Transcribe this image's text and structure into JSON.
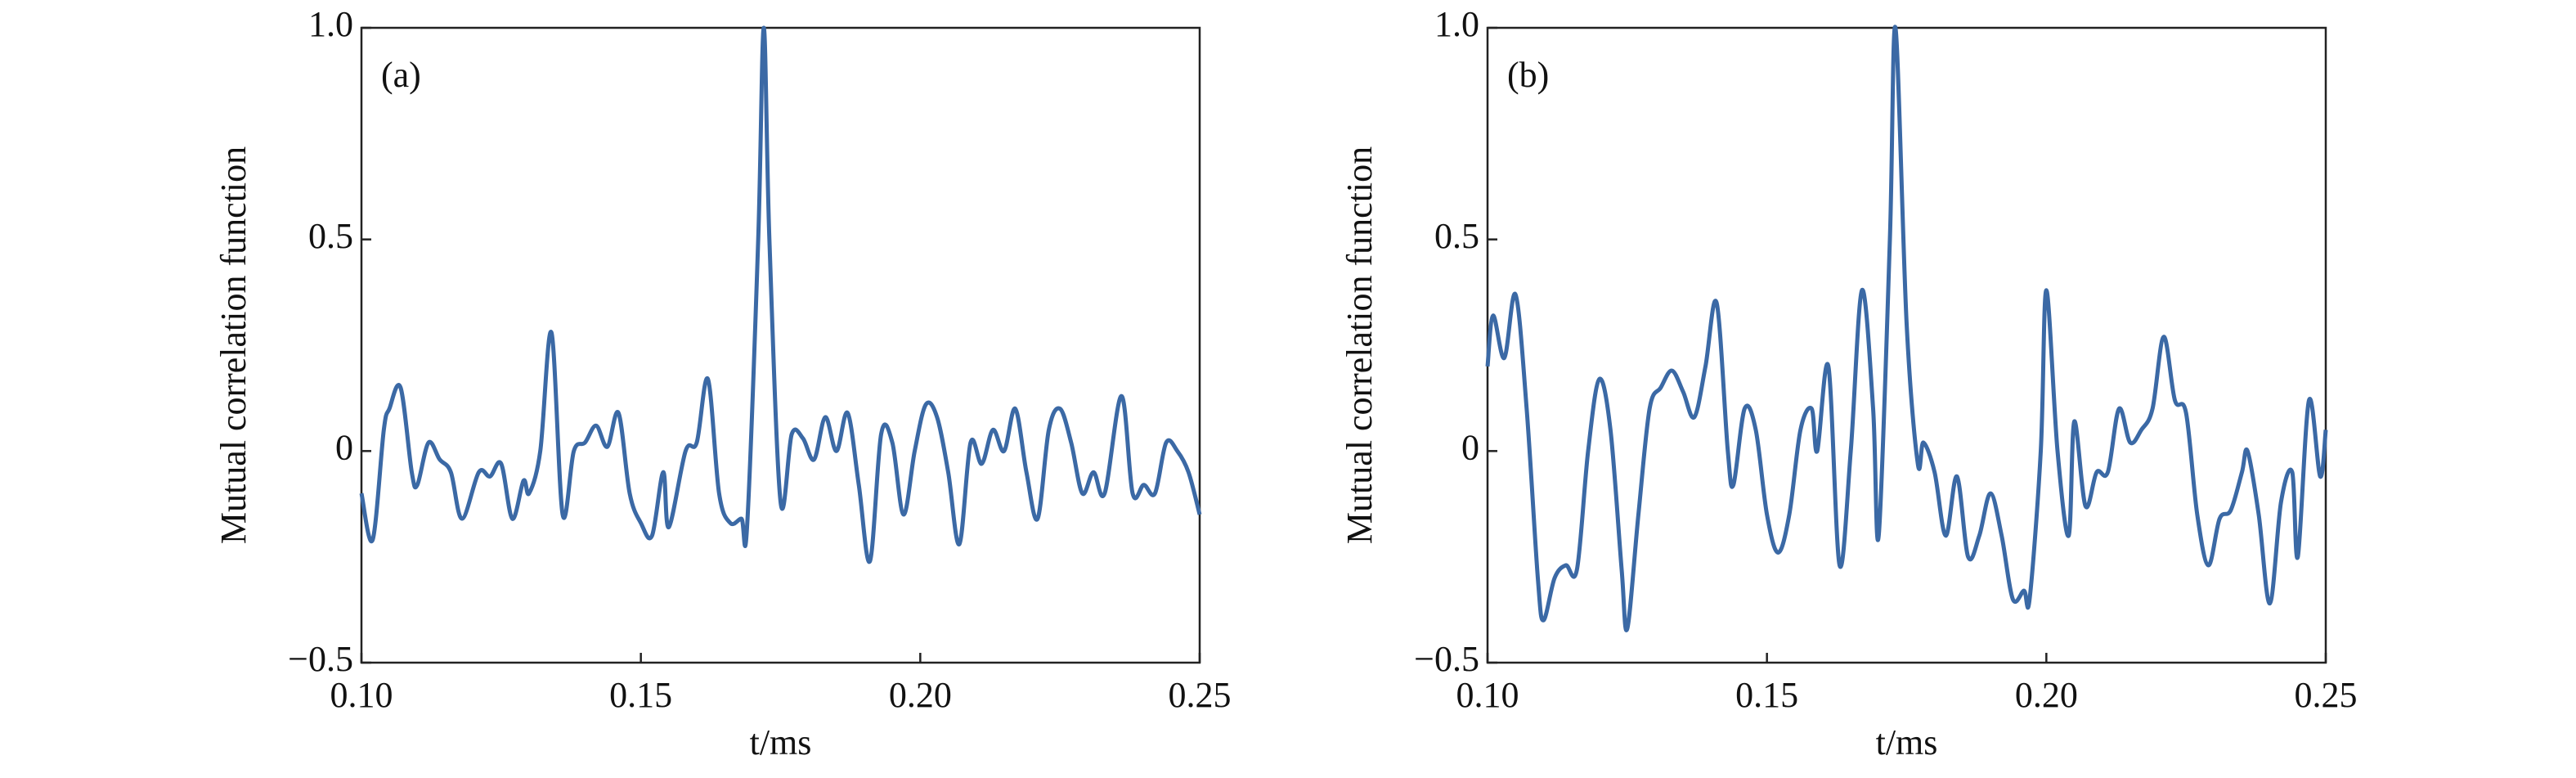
{
  "chart_data": [
    {
      "type": "line",
      "annotation": "(a)",
      "ylabel": "Mutual correlation function",
      "xlabel": "t/ms",
      "xlim": [
        0.1,
        0.25
      ],
      "ylim": [
        -0.5,
        1
      ],
      "xticks": [
        {
          "value": 0.1,
          "label": "0.10"
        },
        0.15,
        {
          "value": 0.2,
          "label": "0.20"
        },
        0.25
      ],
      "yticks": [
        {
          "value": -0.5,
          "label": "−0.5"
        },
        0,
        0.5,
        {
          "value": 1,
          "label": "1.0"
        }
      ],
      "color": "#3b69a5",
      "x": [
        0.1,
        0.102,
        0.104,
        0.105,
        0.107,
        0.109,
        0.11,
        0.112,
        0.114,
        0.116,
        0.118,
        0.121,
        0.123,
        0.125,
        0.127,
        0.129,
        0.13,
        0.132,
        0.134,
        0.136,
        0.138,
        0.14,
        0.142,
        0.144,
        0.146,
        0.148,
        0.15,
        0.152,
        0.154,
        0.155,
        0.158,
        0.16,
        0.162,
        0.164,
        0.166,
        0.168,
        0.169,
        0.171,
        0.172,
        0.173,
        0.175,
        0.177,
        0.179,
        0.181,
        0.183,
        0.185,
        0.187,
        0.189,
        0.191,
        0.193,
        0.195,
        0.197,
        0.199,
        0.201,
        0.203,
        0.205,
        0.207,
        0.209,
        0.211,
        0.213,
        0.215,
        0.217,
        0.219,
        0.221,
        0.223,
        0.225,
        0.227,
        0.229,
        0.231,
        0.233,
        0.236,
        0.238,
        0.24,
        0.242,
        0.244,
        0.246,
        0.248,
        0.25
      ],
      "values": [
        -0.1,
        -0.21,
        0.05,
        0.1,
        0.15,
        -0.05,
        -0.08,
        0.02,
        -0.02,
        -0.05,
        -0.16,
        -0.05,
        -0.06,
        -0.03,
        -0.16,
        -0.07,
        -0.1,
        0.0,
        0.28,
        -0.15,
        0.0,
        0.02,
        0.06,
        0.01,
        0.09,
        -0.1,
        -0.17,
        -0.2,
        -0.05,
        -0.18,
        0.0,
        0.02,
        0.17,
        -0.1,
        -0.17,
        -0.16,
        -0.18,
        0.5,
        1.0,
        0.5,
        -0.12,
        0.04,
        0.03,
        -0.02,
        0.08,
        0.0,
        0.09,
        -0.08,
        -0.26,
        0.04,
        0.02,
        -0.15,
        0.0,
        0.11,
        0.08,
        -0.05,
        -0.22,
        0.02,
        -0.03,
        0.05,
        0.0,
        0.1,
        -0.05,
        -0.16,
        0.05,
        0.1,
        0.02,
        -0.1,
        -0.05,
        -0.1,
        0.13,
        -0.1,
        -0.08,
        -0.1,
        0.02,
        0.0,
        -0.05,
        -0.15
      ]
    },
    {
      "type": "line",
      "annotation": "(b)",
      "ylabel": "Mutual correlation function",
      "xlabel": "t/ms",
      "xlim": [
        0.1,
        0.25
      ],
      "ylim": [
        -0.5,
        1
      ],
      "xticks": [
        {
          "value": 0.1,
          "label": "0.10"
        },
        0.15,
        {
          "value": 0.2,
          "label": "0.20"
        },
        0.25
      ],
      "yticks": [
        {
          "value": -0.5,
          "label": "−0.5"
        },
        0,
        0.5,
        {
          "value": 1,
          "label": "1.0"
        }
      ],
      "color": "#3b69a5",
      "x": [
        0.1,
        0.101,
        0.103,
        0.105,
        0.107,
        0.109,
        0.11,
        0.112,
        0.114,
        0.116,
        0.118,
        0.12,
        0.122,
        0.124,
        0.125,
        0.127,
        0.129,
        0.131,
        0.133,
        0.135,
        0.137,
        0.139,
        0.141,
        0.143,
        0.144,
        0.146,
        0.148,
        0.15,
        0.152,
        0.154,
        0.156,
        0.158,
        0.159,
        0.161,
        0.163,
        0.165,
        0.167,
        0.169,
        0.17,
        0.172,
        0.173,
        0.175,
        0.177,
        0.178,
        0.18,
        0.182,
        0.184,
        0.186,
        0.188,
        0.19,
        0.192,
        0.194,
        0.196,
        0.197,
        0.199,
        0.2,
        0.202,
        0.204,
        0.205,
        0.207,
        0.209,
        0.211,
        0.213,
        0.215,
        0.217,
        0.219,
        0.221,
        0.223,
        0.225,
        0.227,
        0.229,
        0.231,
        0.233,
        0.235,
        0.236,
        0.238,
        0.24,
        0.242,
        0.244,
        0.245,
        0.247,
        0.249,
        0.25
      ],
      "values": [
        0.2,
        0.32,
        0.22,
        0.37,
        0.1,
        -0.3,
        -0.4,
        -0.3,
        -0.27,
        -0.28,
        0.0,
        0.17,
        0.05,
        -0.28,
        -0.42,
        -0.15,
        0.1,
        0.15,
        0.19,
        0.14,
        0.08,
        0.2,
        0.35,
        0.0,
        -0.08,
        0.1,
        0.05,
        -0.15,
        -0.24,
        -0.15,
        0.05,
        0.1,
        0.0,
        0.2,
        -0.27,
        0.0,
        0.38,
        0.1,
        -0.2,
        0.5,
        1.0,
        0.3,
        -0.03,
        0.02,
        -0.05,
        -0.2,
        -0.06,
        -0.25,
        -0.2,
        -0.1,
        -0.2,
        -0.35,
        -0.33,
        -0.35,
        0.0,
        0.38,
        0.0,
        -0.2,
        0.07,
        -0.13,
        -0.05,
        -0.05,
        0.1,
        0.02,
        0.05,
        0.1,
        0.27,
        0.12,
        0.09,
        -0.15,
        -0.27,
        -0.16,
        -0.14,
        -0.05,
        0.0,
        -0.15,
        -0.36,
        -0.12,
        -0.05,
        -0.25,
        0.12,
        -0.06,
        0.05
      ]
    }
  ]
}
